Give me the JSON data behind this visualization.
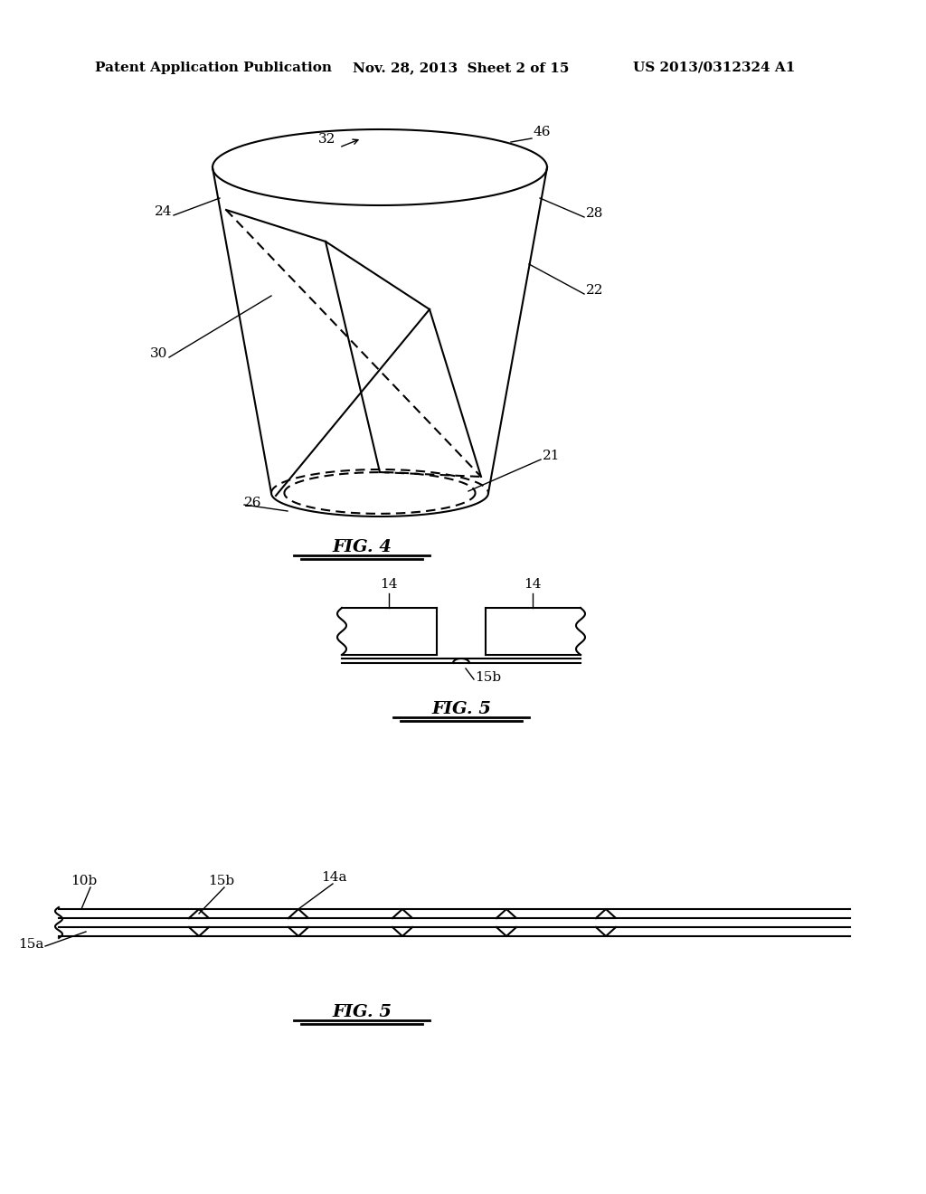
{
  "header_left": "Patent Application Publication",
  "header_mid": "Nov. 28, 2013  Sheet 2 of 15",
  "header_right": "US 2013/0312324 A1",
  "bg_color": "#ffffff",
  "line_color": "#000000",
  "fig4_title": "FIG. 4",
  "fig5a_title": "FIG. 5",
  "fig5b_title": "FIG. 5"
}
